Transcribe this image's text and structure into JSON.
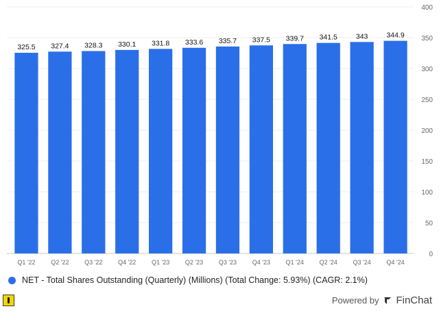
{
  "chart_data": {
    "type": "bar",
    "categories": [
      "Q1 '22",
      "Q2 '22",
      "Q3 '22",
      "Q4 '22",
      "Q1 '23",
      "Q2 '23",
      "Q3 '23",
      "Q4 '23",
      "Q1 '24",
      "Q2 '24",
      "Q3 '24",
      "Q4 '24"
    ],
    "series": [
      {
        "name": "NET - Total Shares Outstanding (Quarterly) (Millions) (Total Change: 5.93%) (CAGR: 2.1%)",
        "values": [
          325.5,
          327.4,
          328.3,
          330.1,
          331.8,
          333.6,
          335.7,
          337.5,
          339.7,
          341.5,
          343,
          344.9
        ],
        "value_labels": [
          "325.5",
          "327.4",
          "328.3",
          "330.1",
          "331.8",
          "333.6",
          "335.7",
          "337.5",
          "339.7",
          "341.5",
          "343",
          "344.9"
        ]
      }
    ],
    "ylim": [
      0,
      400
    ],
    "yticks": [
      0,
      50,
      100,
      150,
      200,
      250,
      300,
      350,
      400
    ],
    "grid": true,
    "legend_position": "bottom-left",
    "bar_color": "#2a6fe8"
  },
  "legend": {
    "label": "NET - Total Shares Outstanding (Quarterly) (Millions) (Total Change: 5.93%) (CAGR: 2.1%)",
    "color": "#2a6fe8"
  },
  "footer": {
    "powered_by": "Powered by",
    "brand": "FinChat"
  }
}
